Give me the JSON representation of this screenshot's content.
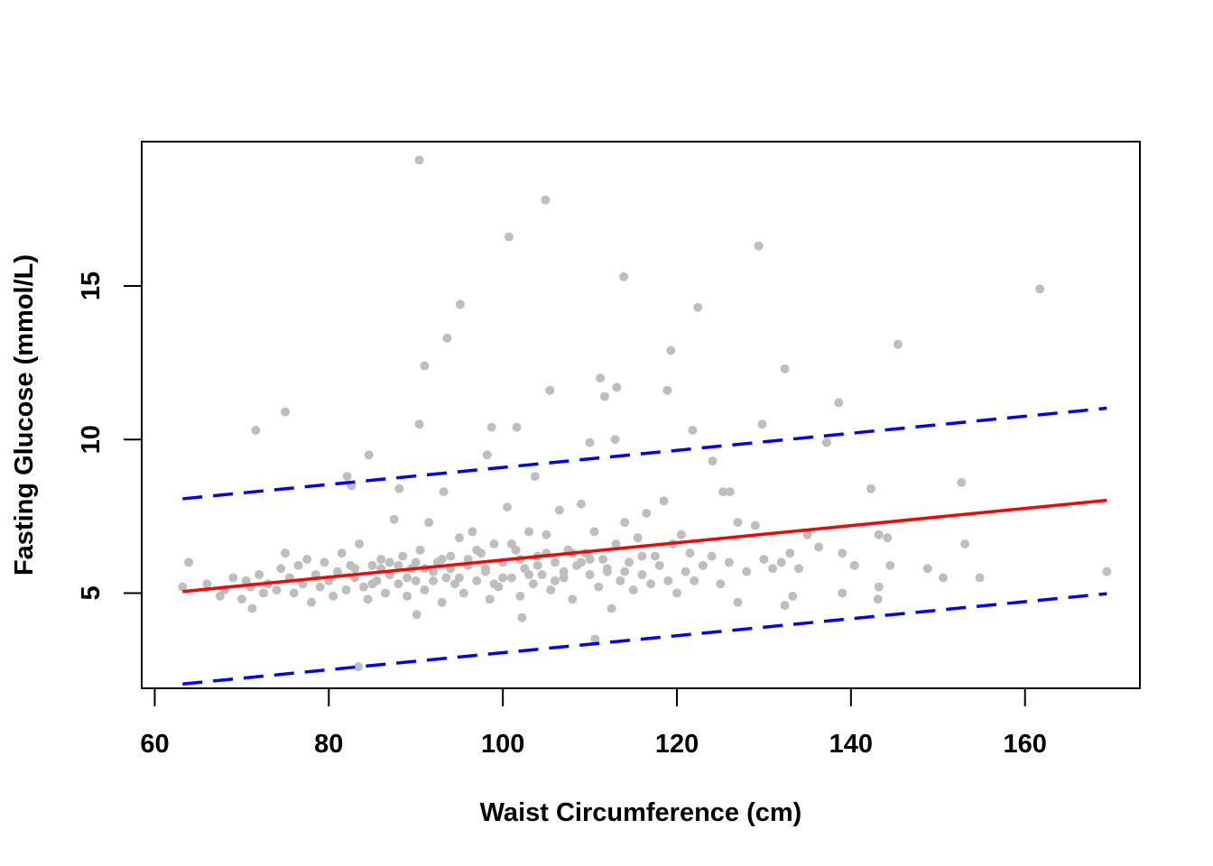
{
  "chart_data": {
    "type": "scatter",
    "title": "",
    "xlabel": "Waist Circumference (cm)",
    "ylabel": "Fasting Glucose (mmol/L)",
    "xlim": [
      58.5,
      173.2
    ],
    "ylim": [
      1.9,
      19.7
    ],
    "xticks": [
      60,
      80,
      100,
      120,
      140,
      160
    ],
    "yticks": [
      5,
      10,
      15
    ],
    "xtick_labels": [
      "60",
      "80",
      "100",
      "120",
      "140",
      "160"
    ],
    "ytick_labels": [
      "5",
      "10",
      "15"
    ],
    "grid": false,
    "colors": {
      "points": "#bebebe",
      "fit": "#ff0000",
      "bands": "#0000ff"
    },
    "lines": [
      {
        "role": "fit",
        "style": "solid",
        "x": [
          63.2,
          169.4
        ],
        "y": [
          5.05,
          8.02
        ]
      },
      {
        "role": "upper-band",
        "style": "dashed",
        "x": [
          63.2,
          169.4
        ],
        "y": [
          8.07,
          11.02
        ]
      },
      {
        "role": "lower-band",
        "style": "dashed",
        "x": [
          63.2,
          169.4
        ],
        "y": [
          2.04,
          4.98
        ]
      }
    ],
    "points": [
      [
        90.4,
        19.1
      ],
      [
        104.9,
        17.8
      ],
      [
        100.7,
        16.6
      ],
      [
        129.4,
        16.3
      ],
      [
        113.9,
        15.3
      ],
      [
        161.7,
        14.9
      ],
      [
        95.1,
        14.4
      ],
      [
        122.4,
        14.3
      ],
      [
        93.6,
        13.3
      ],
      [
        145.4,
        13.1
      ],
      [
        119.3,
        12.9
      ],
      [
        91.0,
        12.4
      ],
      [
        132.4,
        12.3
      ],
      [
        111.2,
        12.0
      ],
      [
        113.1,
        11.7
      ],
      [
        105.4,
        11.6
      ],
      [
        111.7,
        11.4
      ],
      [
        118.9,
        11.6
      ],
      [
        138.6,
        11.2
      ],
      [
        75.0,
        10.9
      ],
      [
        71.6,
        10.3
      ],
      [
        90.4,
        10.5
      ],
      [
        98.7,
        10.4
      ],
      [
        101.6,
        10.4
      ],
      [
        129.8,
        10.5
      ],
      [
        121.8,
        10.3
      ],
      [
        112.9,
        10.0
      ],
      [
        110.0,
        9.9
      ],
      [
        137.2,
        9.9
      ],
      [
        84.6,
        9.5
      ],
      [
        98.2,
        9.5
      ],
      [
        124.1,
        9.3
      ],
      [
        82.1,
        8.8
      ],
      [
        82.6,
        8.5
      ],
      [
        88.1,
        8.4
      ],
      [
        93.2,
        8.3
      ],
      [
        142.3,
        8.4
      ],
      [
        152.7,
        8.6
      ],
      [
        125.3,
        8.3
      ],
      [
        126.1,
        8.3
      ],
      [
        103.7,
        8.8
      ],
      [
        169.4,
        5.7
      ],
      [
        154.8,
        5.5
      ],
      [
        153.1,
        6.6
      ],
      [
        150.6,
        5.5
      ],
      [
        148.8,
        5.8
      ],
      [
        144.5,
        5.9
      ],
      [
        143.2,
        5.2
      ],
      [
        143.1,
        4.8
      ],
      [
        139.0,
        5.0
      ],
      [
        140.4,
        5.9
      ],
      [
        139.0,
        6.3
      ],
      [
        136.3,
        6.5
      ],
      [
        144.2,
        6.8
      ],
      [
        143.2,
        6.9
      ],
      [
        135.0,
        6.9
      ],
      [
        132.4,
        4.6
      ],
      [
        133.3,
        4.9
      ],
      [
        127.0,
        4.7
      ],
      [
        83.4,
        2.6
      ],
      [
        110.6,
        3.5
      ],
      [
        102.2,
        4.2
      ],
      [
        90.1,
        4.3
      ],
      [
        63.9,
        6.0
      ],
      [
        63.2,
        5.2
      ],
      [
        71.2,
        4.5
      ],
      [
        66,
        5.3
      ],
      [
        67.5,
        4.9
      ],
      [
        68,
        5.1
      ],
      [
        69,
        5.5
      ],
      [
        70,
        4.8
      ],
      [
        70.5,
        5.4
      ],
      [
        71,
        5.2
      ],
      [
        72,
        5.6
      ],
      [
        72.5,
        5.0
      ],
      [
        73,
        5.3
      ],
      [
        74,
        5.1
      ],
      [
        74.5,
        5.8
      ],
      [
        75,
        6.3
      ],
      [
        75.5,
        5.5
      ],
      [
        76,
        5.0
      ],
      [
        76.5,
        5.9
      ],
      [
        77,
        5.3
      ],
      [
        77.5,
        6.1
      ],
      [
        78,
        4.7
      ],
      [
        78.5,
        5.6
      ],
      [
        79,
        5.2
      ],
      [
        79.5,
        6.0
      ],
      [
        80,
        5.4
      ],
      [
        80.5,
        4.9
      ],
      [
        81,
        5.7
      ],
      [
        81.5,
        6.3
      ],
      [
        82,
        5.1
      ],
      [
        82.5,
        5.9
      ],
      [
        83,
        5.5
      ],
      [
        83.5,
        6.6
      ],
      [
        84,
        5.2
      ],
      [
        84.5,
        4.8
      ],
      [
        85,
        5.9
      ],
      [
        85.5,
        5.4
      ],
      [
        86,
        6.1
      ],
      [
        86.5,
        5.0
      ],
      [
        87,
        5.6
      ],
      [
        87.5,
        7.4
      ],
      [
        88,
        5.3
      ],
      [
        88.5,
        6.2
      ],
      [
        89,
        4.9
      ],
      [
        89.5,
        5.8
      ],
      [
        90,
        5.4
      ],
      [
        90.5,
        6.4
      ],
      [
        91,
        5.1
      ],
      [
        91.5,
        7.3
      ],
      [
        92,
        5.7
      ],
      [
        92.5,
        6.0
      ],
      [
        93,
        4.7
      ],
      [
        93.5,
        5.5
      ],
      [
        94,
        6.2
      ],
      [
        94.5,
        5.3
      ],
      [
        95,
        6.8
      ],
      [
        95.5,
        5.0
      ],
      [
        96,
        5.9
      ],
      [
        96.5,
        7.0
      ],
      [
        97,
        5.4
      ],
      [
        97.5,
        6.3
      ],
      [
        98,
        5.7
      ],
      [
        98.5,
        4.8
      ],
      [
        99,
        6.6
      ],
      [
        99.5,
        5.2
      ],
      [
        100,
        6.0
      ],
      [
        100.5,
        7.8
      ],
      [
        101,
        5.5
      ],
      [
        101.5,
        6.4
      ],
      [
        102,
        4.9
      ],
      [
        102.5,
        5.8
      ],
      [
        103,
        7.0
      ],
      [
        103.5,
        5.3
      ],
      [
        104,
        6.2
      ],
      [
        104.5,
        5.6
      ],
      [
        105,
        6.9
      ],
      [
        105.5,
        5.1
      ],
      [
        106,
        6.0
      ],
      [
        106.5,
        7.7
      ],
      [
        107,
        5.5
      ],
      [
        107.5,
        6.4
      ],
      [
        108,
        4.8
      ],
      [
        108.5,
        5.9
      ],
      [
        109,
        7.9
      ],
      [
        109.5,
        6.3
      ],
      [
        110,
        5.6
      ],
      [
        110.5,
        7.0
      ],
      [
        111,
        5.2
      ],
      [
        111.5,
        6.1
      ],
      [
        112,
        5.7
      ],
      [
        112.5,
        4.5
      ],
      [
        113,
        6.6
      ],
      [
        113.5,
        5.4
      ],
      [
        114,
        7.3
      ],
      [
        114.5,
        6.0
      ],
      [
        115,
        5.1
      ],
      [
        115.5,
        6.8
      ],
      [
        116,
        5.6
      ],
      [
        116.5,
        7.6
      ],
      [
        117,
        5.3
      ],
      [
        117.5,
        6.2
      ],
      [
        118,
        5.9
      ],
      [
        118.5,
        8.0
      ],
      [
        119,
        5.4
      ],
      [
        119.5,
        6.6
      ],
      [
        120,
        5.0
      ],
      [
        120.5,
        6.9
      ],
      [
        121,
        5.7
      ],
      [
        121.5,
        6.3
      ],
      [
        122,
        5.4
      ],
      [
        123,
        5.9
      ],
      [
        124,
        6.2
      ],
      [
        125,
        5.3
      ],
      [
        126,
        6.0
      ],
      [
        127,
        7.3
      ],
      [
        128,
        5.7
      ],
      [
        129,
        7.2
      ],
      [
        130,
        6.1
      ],
      [
        131,
        5.8
      ],
      [
        132,
        6.0
      ],
      [
        133,
        6.3
      ],
      [
        134,
        5.8
      ],
      [
        86,
        5.8
      ],
      [
        88,
        5.9
      ],
      [
        90,
        6.0
      ],
      [
        92,
        5.4
      ],
      [
        94,
        5.8
      ],
      [
        96,
        6.1
      ],
      [
        98,
        5.8
      ],
      [
        100,
        5.5
      ],
      [
        102,
        6.1
      ],
      [
        104,
        5.9
      ],
      [
        106,
        5.4
      ],
      [
        108,
        6.3
      ],
      [
        110,
        6.1
      ],
      [
        112,
        5.8
      ],
      [
        114,
        5.7
      ],
      [
        116,
        6.2
      ],
      [
        95,
        5.5
      ],
      [
        97,
        6.4
      ],
      [
        99,
        5.3
      ],
      [
        101,
        6.6
      ],
      [
        103,
        5.6
      ],
      [
        105,
        6.3
      ],
      [
        107,
        5.7
      ],
      [
        109,
        6.0
      ],
      [
        85,
        5.3
      ],
      [
        87,
        6.0
      ],
      [
        89,
        5.5
      ],
      [
        91,
        5.8
      ],
      [
        93,
        6.1
      ],
      [
        83,
        5.8
      ]
    ]
  }
}
